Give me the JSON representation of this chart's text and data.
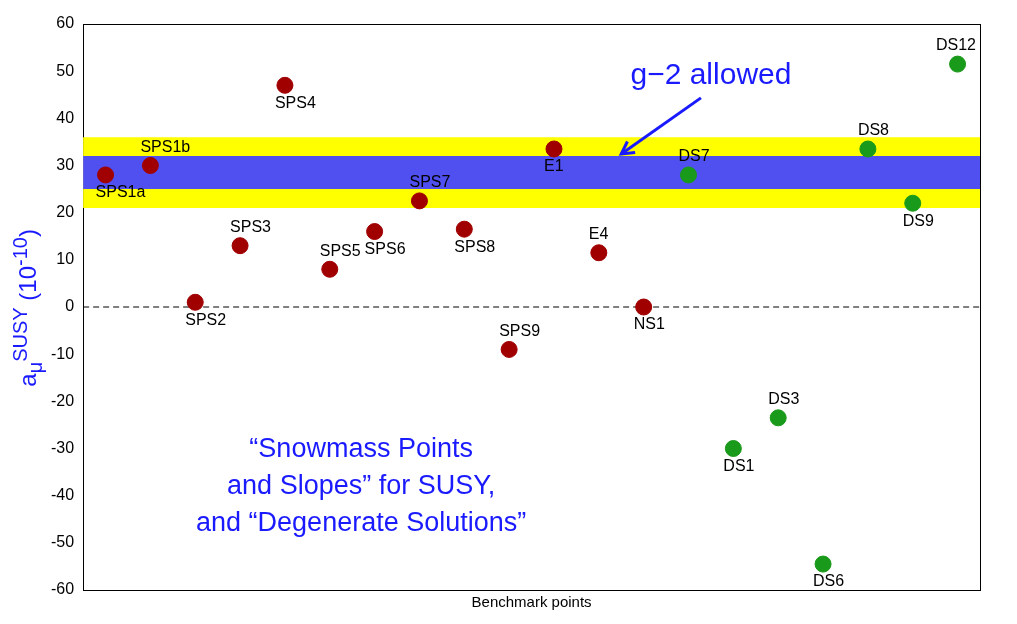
{
  "chart_data": {
    "type": "scatter",
    "xlabel": "Benchmark points",
    "ylabel": "a$_{μ}$$^{SUSY}$ (10$^{-10}$)",
    "categories": [
      null,
      null,
      null,
      null,
      null,
      null,
      null,
      null,
      null,
      null,
      null,
      null,
      null,
      null,
      null,
      null,
      null,
      null,
      null,
      null
    ],
    "series": [
      {
        "name": "SPS1a",
        "color": "#a00000",
        "values": [
          28,
          null,
          null,
          null,
          null,
          null,
          null,
          null,
          null,
          null,
          null,
          null,
          null,
          null,
          null,
          null,
          null,
          null,
          null,
          null
        ]
      },
      {
        "name": "SPS1b",
        "color": "#a00000",
        "values": [
          null,
          30,
          null,
          null,
          null,
          null,
          null,
          null,
          null,
          null,
          null,
          null,
          null,
          null,
          null,
          null,
          null,
          null,
          null,
          null
        ]
      },
      {
        "name": "SPS2",
        "color": "#a00000",
        "values": [
          null,
          null,
          1,
          null,
          null,
          null,
          null,
          null,
          null,
          null,
          null,
          null,
          null,
          null,
          null,
          null,
          null,
          null,
          null,
          null
        ]
      },
      {
        "name": "SPS3",
        "color": "#a00000",
        "values": [
          null,
          null,
          null,
          13,
          null,
          null,
          null,
          null,
          null,
          null,
          null,
          null,
          null,
          null,
          null,
          null,
          null,
          null,
          null,
          null
        ]
      },
      {
        "name": "SPS4",
        "color": "#a00000",
        "values": [
          null,
          null,
          null,
          null,
          47,
          null,
          null,
          null,
          null,
          null,
          null,
          null,
          null,
          null,
          null,
          null,
          null,
          null,
          null,
          null
        ]
      },
      {
        "name": "SPS5",
        "color": "#a00000",
        "values": [
          null,
          null,
          null,
          null,
          null,
          8,
          null,
          null,
          null,
          null,
          null,
          null,
          null,
          null,
          null,
          null,
          null,
          null,
          null,
          null
        ]
      },
      {
        "name": "SPS6",
        "color": "#a00000",
        "values": [
          null,
          null,
          null,
          null,
          null,
          null,
          16,
          null,
          null,
          null,
          null,
          null,
          null,
          null,
          null,
          null,
          null,
          null,
          null,
          null
        ]
      },
      {
        "name": "SPS7",
        "color": "#a00000",
        "values": [
          null,
          null,
          null,
          null,
          null,
          null,
          null,
          22.5,
          null,
          null,
          null,
          null,
          null,
          null,
          null,
          null,
          null,
          null,
          null,
          null
        ]
      },
      {
        "name": "SPS8",
        "color": "#a00000",
        "values": [
          null,
          null,
          null,
          null,
          null,
          null,
          null,
          null,
          16.5,
          null,
          null,
          null,
          null,
          null,
          null,
          null,
          null,
          null,
          null,
          null
        ]
      },
      {
        "name": "SPS9",
        "color": "#a00000",
        "values": [
          null,
          null,
          null,
          null,
          null,
          null,
          null,
          null,
          null,
          -9,
          null,
          null,
          null,
          null,
          null,
          null,
          null,
          null,
          null,
          null
        ]
      },
      {
        "name": "E1",
        "color": "#a00000",
        "values": [
          null,
          null,
          null,
          null,
          null,
          null,
          null,
          null,
          null,
          null,
          33.5,
          null,
          null,
          null,
          null,
          null,
          null,
          null,
          null,
          null
        ]
      },
      {
        "name": "E4",
        "color": "#a00000",
        "values": [
          null,
          null,
          null,
          null,
          null,
          null,
          null,
          null,
          null,
          null,
          null,
          11.5,
          null,
          null,
          null,
          null,
          null,
          null,
          null,
          null
        ]
      },
      {
        "name": "NS1",
        "color": "#a00000",
        "values": [
          null,
          null,
          null,
          null,
          null,
          null,
          null,
          null,
          null,
          null,
          null,
          null,
          0,
          null,
          null,
          null,
          null,
          null,
          null,
          null
        ]
      },
      {
        "name": "DS7",
        "color": "#1a9a1a",
        "values": [
          null,
          null,
          null,
          null,
          null,
          null,
          null,
          null,
          null,
          null,
          null,
          null,
          null,
          28,
          null,
          null,
          null,
          null,
          null,
          null
        ]
      },
      {
        "name": "DS1",
        "color": "#1a9a1a",
        "values": [
          null,
          null,
          null,
          null,
          null,
          null,
          null,
          null,
          null,
          null,
          null,
          null,
          null,
          null,
          -30,
          null,
          null,
          null,
          null,
          null
        ]
      },
      {
        "name": "DS3",
        "color": "#1a9a1a",
        "values": [
          null,
          null,
          null,
          null,
          null,
          null,
          null,
          null,
          null,
          null,
          null,
          null,
          null,
          null,
          null,
          -23.5,
          null,
          null,
          null,
          null
        ]
      },
      {
        "name": "DS6",
        "color": "#1a9a1a",
        "values": [
          null,
          null,
          null,
          null,
          null,
          null,
          null,
          null,
          null,
          null,
          null,
          null,
          null,
          null,
          null,
          null,
          -54.5,
          null,
          null,
          null
        ]
      },
      {
        "name": "DS8",
        "color": "#1a9a1a",
        "values": [
          null,
          null,
          null,
          null,
          null,
          null,
          null,
          null,
          null,
          null,
          null,
          null,
          null,
          null,
          null,
          null,
          null,
          33.5,
          null,
          null
        ]
      },
      {
        "name": "DS9",
        "color": "#1a9a1a",
        "values": [
          null,
          null,
          null,
          null,
          null,
          null,
          null,
          null,
          null,
          null,
          null,
          null,
          null,
          null,
          null,
          null,
          null,
          null,
          22,
          null
        ]
      },
      {
        "name": "DS12",
        "color": "#1a9a1a",
        "values": [
          null,
          null,
          null,
          null,
          null,
          null,
          null,
          null,
          null,
          null,
          null,
          null,
          null,
          null,
          null,
          null,
          null,
          null,
          null,
          51.5
        ]
      }
    ],
    "ylim": [
      -60,
      60
    ],
    "yticks": [
      -60,
      -50,
      -40,
      -30,
      -20,
      -10,
      0,
      10,
      20,
      30,
      40,
      50,
      60
    ],
    "tick_labels": "y",
    "grid": false,
    "legend": false,
    "marker": "circle",
    "bands": [
      {
        "axis": "y",
        "from": 21,
        "to": 36,
        "color": "#ffff00"
      },
      {
        "axis": "y",
        "from": 25,
        "to": 32,
        "color": "#5050f0",
        "label": "g−2 allowed"
      }
    ],
    "ref_lines": [
      {
        "axis": "y",
        "value": 0,
        "color": "#000000",
        "line_style": "dashed"
      }
    ],
    "annotations": [
      "“Snowmass Points\nand Slopes” for SUSY,\nand “Degenerate Solutions”"
    ]
  }
}
